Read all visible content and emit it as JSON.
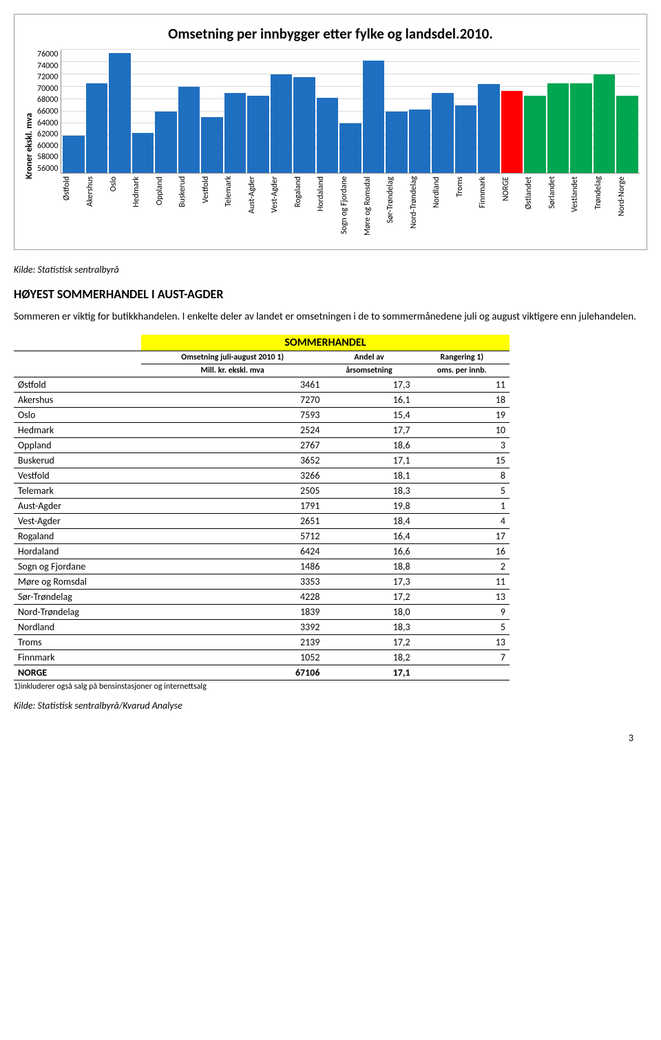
{
  "chart": {
    "title": "Omsetning per innbygger etter fylke og landsdel.2010.",
    "y_label": "Kroner ekskl. mva",
    "ylim": [
      56000,
      76000
    ],
    "ytick_step": 2000,
    "yticks": [
      76000,
      74000,
      72000,
      70000,
      68000,
      66000,
      64000,
      62000,
      60000,
      58000,
      56000
    ],
    "grid_color": "#d9d9d9",
    "background_color": "#ffffff",
    "type": "bar",
    "bars": [
      {
        "label": "Østfold",
        "value": 62000,
        "color": "#1f6fc0"
      },
      {
        "label": "Akershus",
        "value": 70500,
        "color": "#1f6fc0"
      },
      {
        "label": "Oslo",
        "value": 75400,
        "color": "#1f6fc0"
      },
      {
        "label": "Hedmark",
        "value": 62500,
        "color": "#1f6fc0"
      },
      {
        "label": "Oppland",
        "value": 66000,
        "color": "#1f6fc0"
      },
      {
        "label": "Buskerud",
        "value": 70000,
        "color": "#1f6fc0"
      },
      {
        "label": "Vestfold",
        "value": 65000,
        "color": "#1f6fc0"
      },
      {
        "label": "Telemark",
        "value": 69000,
        "color": "#1f6fc0"
      },
      {
        "label": "Aust-Agder",
        "value": 68500,
        "color": "#1f6fc0"
      },
      {
        "label": "Vest-Agder",
        "value": 72000,
        "color": "#1f6fc0"
      },
      {
        "label": "Rogaland",
        "value": 71500,
        "color": "#1f6fc0"
      },
      {
        "label": "Hordaland",
        "value": 68200,
        "color": "#1f6fc0"
      },
      {
        "label": "Sogn og Fjordane",
        "value": 64000,
        "color": "#1f6fc0"
      },
      {
        "label": "Møre og Romsdal",
        "value": 74200,
        "color": "#1f6fc0"
      },
      {
        "label": "Sør-Trøndelag",
        "value": 66000,
        "color": "#1f6fc0"
      },
      {
        "label": "Nord-Trøndelag",
        "value": 66300,
        "color": "#1f6fc0"
      },
      {
        "label": "Nordland",
        "value": 69000,
        "color": "#1f6fc0"
      },
      {
        "label": "Troms",
        "value": 67000,
        "color": "#1f6fc0"
      },
      {
        "label": "Finnmark",
        "value": 70400,
        "color": "#1f6fc0"
      },
      {
        "label": "NORGE",
        "value": 69300,
        "color": "#ff0000"
      },
      {
        "label": "Østlandet",
        "value": 68500,
        "color": "#00a650"
      },
      {
        "label": "Sørlandet",
        "value": 70500,
        "color": "#00a650"
      },
      {
        "label": "Vestlandet",
        "value": 70500,
        "color": "#00a650"
      },
      {
        "label": "Trøndelag",
        "value": 72000,
        "color": "#00a650"
      },
      {
        "label": "Nord-Norge",
        "value": 68500,
        "color": "#00a650"
      }
    ]
  },
  "kilde1": "Kilde: Statistisk sentralbyrå",
  "section_heading": "HØYEST SOMMERHANDEL I AUST-AGDER",
  "paragraph": "Sommeren er viktig for butikkhandelen. I enkelte deler av landet er omsetningen i de to sommermånedene juli og august viktigere enn julehandelen.",
  "table": {
    "title": "SOMMERHANDEL",
    "col1_top": "Omsetning juli-august 2010 1)",
    "col2_top": "Andel av",
    "col3_top": "Rangering 1)",
    "col1_sub": "Mill. kr. ekskl. mva",
    "col2_sub": "årsomsetning",
    "col3_sub": "oms. per innb.",
    "rows": [
      {
        "name": "Østfold",
        "v1": "3461",
        "v2": "17,3",
        "v3": "11"
      },
      {
        "name": "Akershus",
        "v1": "7270",
        "v2": "16,1",
        "v3": "18"
      },
      {
        "name": "Oslo",
        "v1": "7593",
        "v2": "15,4",
        "v3": "19"
      },
      {
        "name": "Hedmark",
        "v1": "2524",
        "v2": "17,7",
        "v3": "10"
      },
      {
        "name": "Oppland",
        "v1": "2767",
        "v2": "18,6",
        "v3": "3"
      },
      {
        "name": "Buskerud",
        "v1": "3652",
        "v2": "17,1",
        "v3": "15"
      },
      {
        "name": "Vestfold",
        "v1": "3266",
        "v2": "18,1",
        "v3": "8"
      },
      {
        "name": "Telemark",
        "v1": "2505",
        "v2": "18,3",
        "v3": "5"
      },
      {
        "name": "Aust-Agder",
        "v1": "1791",
        "v2": "19,8",
        "v3": "1"
      },
      {
        "name": "Vest-Agder",
        "v1": "2651",
        "v2": "18,4",
        "v3": "4"
      },
      {
        "name": "Rogaland",
        "v1": "5712",
        "v2": "16,4",
        "v3": "17"
      },
      {
        "name": "Hordaland",
        "v1": "6424",
        "v2": "16,6",
        "v3": "16"
      },
      {
        "name": "Sogn og Fjordane",
        "v1": "1486",
        "v2": "18,8",
        "v3": "2"
      },
      {
        "name": "Møre og Romsdal",
        "v1": "3353",
        "v2": "17,3",
        "v3": "11"
      },
      {
        "name": "Sør-Trøndelag",
        "v1": "4228",
        "v2": "17,2",
        "v3": "13"
      },
      {
        "name": "Nord-Trøndelag",
        "v1": "1839",
        "v2": "18,0",
        "v3": "9"
      },
      {
        "name": "Nordland",
        "v1": "3392",
        "v2": "18,3",
        "v3": "5"
      },
      {
        "name": "Troms",
        "v1": "2139",
        "v2": "17,2",
        "v3": "13"
      },
      {
        "name": "Finnmark",
        "v1": "1052",
        "v2": "18,2",
        "v3": "7"
      }
    ],
    "norge": {
      "name": "NORGE",
      "v1": "67106",
      "v2": "17,1",
      "v3": ""
    },
    "footnote": "1)inkluderer også salg på bensinstasjoner og internettsalg"
  },
  "kilde2": "Kilde: Statistisk sentralbyrå/Kvarud Analyse",
  "page_number": "3"
}
